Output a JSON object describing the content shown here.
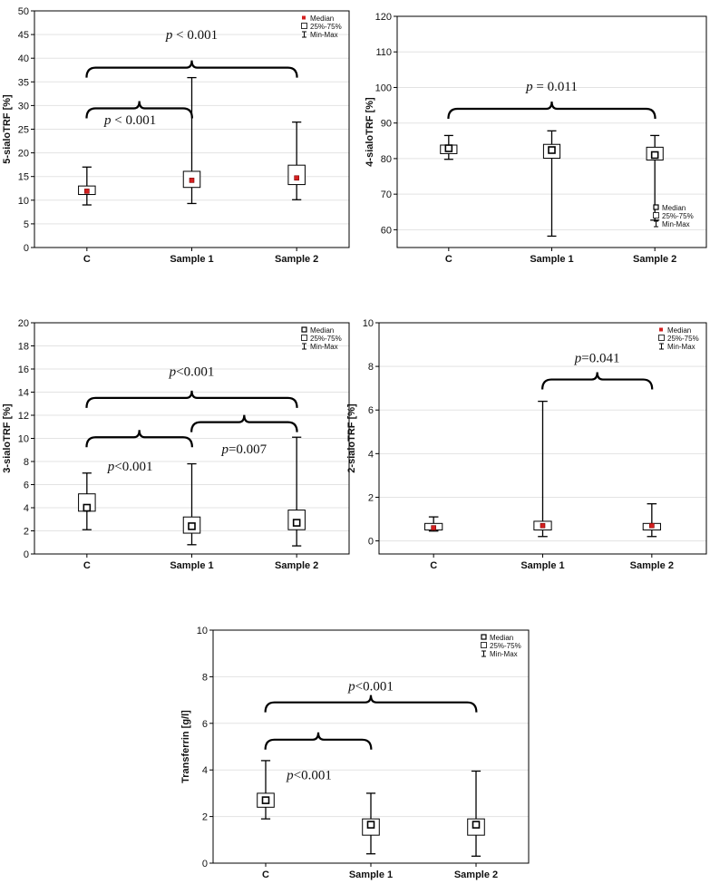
{
  "chart_data": [
    {
      "type": "box",
      "ylabel": "5-sialoTRF [%]",
      "ylim": [
        0,
        50
      ],
      "yticks": [
        0,
        5,
        10,
        15,
        20,
        25,
        30,
        35,
        40,
        45,
        50
      ],
      "categories": [
        "C",
        "Sample 1",
        "Sample 2"
      ],
      "median_marker": "red-dot",
      "legend": {
        "position": "top-right",
        "entries": [
          "Median",
          "25%-75%",
          "Min-Max"
        ]
      },
      "boxes": [
        {
          "min": 9.0,
          "q1": 11.2,
          "median": 11.9,
          "q3": 13.0,
          "max": 17.0
        },
        {
          "min": 9.3,
          "q1": 12.7,
          "median": 14.2,
          "q3": 16.1,
          "max": 35.9
        },
        {
          "min": 10.1,
          "q1": 13.3,
          "median": 14.7,
          "q3": 17.4,
          "max": 26.5
        }
      ],
      "comparisons": [
        {
          "from": 0,
          "to": 1,
          "y": 29.4,
          "label": "p < 0.001",
          "label_y": 27.0,
          "italic_p": true
        },
        {
          "from": 0,
          "to": 2,
          "y": 38.0,
          "label": "p < 0.001",
          "label_y": 45.0,
          "italic_p": true
        }
      ]
    },
    {
      "type": "box",
      "ylabel": "4-sialoTRF [%]",
      "ylim": [
        55,
        120
      ],
      "yticks": [
        60,
        70,
        80,
        90,
        100,
        110,
        120
      ],
      "categories": [
        "C",
        "Sample 1",
        "Sample 2"
      ],
      "median_marker": "square",
      "legend": {
        "position": "bottom-right",
        "entries": [
          "Median",
          "25%-75%",
          "Min-Max"
        ]
      },
      "boxes": [
        {
          "min": 79.8,
          "q1": 81.4,
          "median": 82.9,
          "q3": 83.8,
          "max": 86.5
        },
        {
          "min": 58.2,
          "q1": 80.1,
          "median": 82.4,
          "q3": 84.0,
          "max": 87.8
        },
        {
          "min": 62.7,
          "q1": 79.6,
          "median": 81.0,
          "q3": 83.2,
          "max": 86.5
        }
      ],
      "comparisons": [
        {
          "from": 0,
          "to": 2,
          "y": 94.0,
          "label": "p = 0.011",
          "label_y": 100.4,
          "italic_p": true
        }
      ]
    },
    {
      "type": "box",
      "ylabel": "3-sialoTRF [%]",
      "ylim": [
        0,
        20
      ],
      "yticks": [
        0,
        2,
        4,
        6,
        8,
        10,
        12,
        14,
        16,
        18,
        20
      ],
      "categories": [
        "C",
        "Sample 1",
        "Sample 2"
      ],
      "median_marker": "square",
      "legend": {
        "position": "top-right",
        "entries": [
          "Median",
          "25%-75%",
          "Min-Max"
        ]
      },
      "boxes": [
        {
          "min": 2.1,
          "q1": 3.7,
          "median": 4.0,
          "q3": 5.2,
          "max": 7.0
        },
        {
          "min": 0.8,
          "q1": 1.8,
          "median": 2.4,
          "q3": 3.2,
          "max": 7.8
        },
        {
          "min": 0.7,
          "q1": 2.1,
          "median": 2.7,
          "q3": 3.8,
          "max": 10.1
        }
      ],
      "comparisons": [
        {
          "from": 0,
          "to": 1,
          "y": 10.1,
          "label": "p<0.001",
          "label_y": 7.6,
          "italic_p": true
        },
        {
          "from": 1,
          "to": 2,
          "y": 11.4,
          "label": "p=0.007",
          "label_y": 9.1,
          "italic_p": true
        },
        {
          "from": 0,
          "to": 2,
          "y": 13.5,
          "label": "p<0.001",
          "label_y": 15.8,
          "italic_p": true
        }
      ]
    },
    {
      "type": "box",
      "ylabel": "2-sialoTRF [%]",
      "ylim": [
        -0.6,
        10
      ],
      "yticks": [
        0,
        2,
        4,
        6,
        8,
        10
      ],
      "categories": [
        "C",
        "Sample 1",
        "Sample 2"
      ],
      "median_marker": "red-dot",
      "legend": {
        "position": "top-right",
        "entries": [
          "Median",
          "25%-75%",
          "Min-Max"
        ]
      },
      "boxes": [
        {
          "min": 0.45,
          "q1": 0.5,
          "median": 0.6,
          "q3": 0.8,
          "max": 1.1
        },
        {
          "min": 0.2,
          "q1": 0.5,
          "median": 0.7,
          "q3": 0.9,
          "max": 6.4
        },
        {
          "min": 0.2,
          "q1": 0.5,
          "median": 0.7,
          "q3": 0.8,
          "max": 1.7
        }
      ],
      "comparisons": [
        {
          "from": 1,
          "to": 2,
          "y": 7.4,
          "label": "p=0.041",
          "label_y": 8.4,
          "italic_p": true
        }
      ]
    },
    {
      "type": "box",
      "ylabel": "Transferrin [g/l]",
      "ylim": [
        0,
        10
      ],
      "yticks": [
        0,
        2,
        4,
        6,
        8,
        10
      ],
      "categories": [
        "C",
        "Sample 1",
        "Sample 2"
      ],
      "median_marker": "square",
      "legend": {
        "position": "top-right",
        "entries": [
          "Median",
          "25%-75%",
          "Min-Max"
        ]
      },
      "boxes": [
        {
          "min": 1.9,
          "q1": 2.4,
          "median": 2.7,
          "q3": 3.0,
          "max": 4.4
        },
        {
          "min": 0.4,
          "q1": 1.2,
          "median": 1.65,
          "q3": 1.9,
          "max": 3.0
        },
        {
          "min": 0.3,
          "q1": 1.2,
          "median": 1.65,
          "q3": 1.9,
          "max": 3.95
        }
      ],
      "comparisons": [
        {
          "from": 0,
          "to": 1,
          "y": 5.3,
          "label": "p<0.001",
          "label_y": 3.8,
          "italic_p": true
        },
        {
          "from": 0,
          "to": 2,
          "y": 6.9,
          "label": "p<0.001",
          "label_y": 7.6,
          "italic_p": true
        }
      ]
    }
  ]
}
